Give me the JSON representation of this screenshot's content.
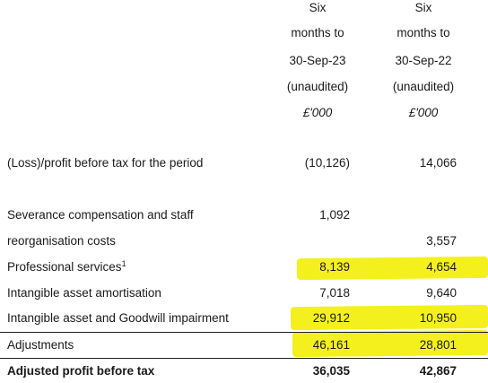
{
  "header": {
    "col1": [
      "Six",
      "months to",
      "30-Sep-23",
      "(unaudited)",
      "£'000"
    ],
    "col2": [
      "Six",
      "months to",
      "30-Sep-22",
      "(unaudited)",
      "£'000"
    ]
  },
  "rows": {
    "loss_profit": {
      "label": "(Loss)/profit before tax for the period",
      "v1": "(10,126)",
      "v2": "14,066"
    },
    "severance": {
      "label_line1": "Severance compensation and staff",
      "label_line2": "reorganisation costs",
      "v1": "1,092",
      "v2": "3,557"
    },
    "professional": {
      "label": "Professional services",
      "footnote": "1",
      "v1": "8,139",
      "v2": "4,654"
    },
    "amortisation": {
      "label": "Intangible asset amortisation",
      "v1": "7,018",
      "v2": "9,640"
    },
    "impairment": {
      "label": "Intangible asset and Goodwill impairment",
      "v1": "29,912",
      "v2": "10,950"
    },
    "adjustments": {
      "label": "Adjustments",
      "v1": "46,161",
      "v2": "28,801"
    },
    "adjusted_profit": {
      "label": "Adjusted profit before tax",
      "v1": "36,035",
      "v2": "42,867"
    }
  },
  "highlight_color": "#f4f01e"
}
